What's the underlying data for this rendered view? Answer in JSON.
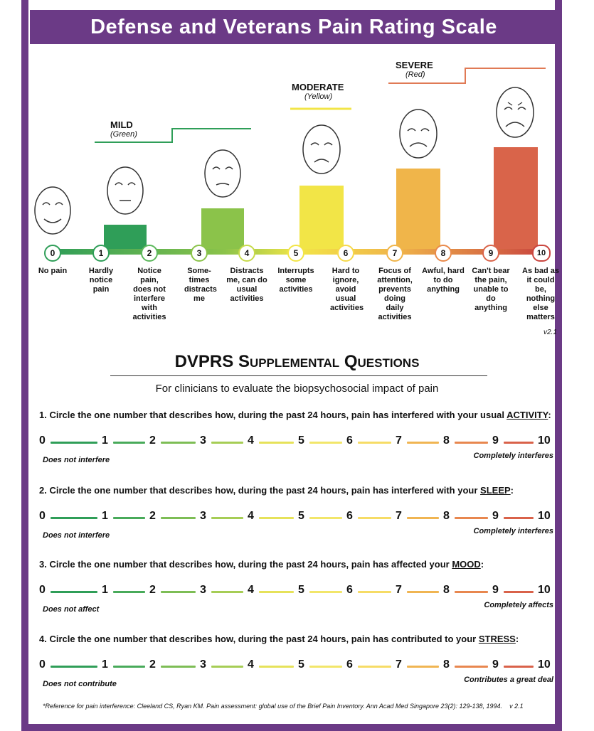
{
  "title": "Defense and Veterans Pain Rating Scale",
  "categories": [
    {
      "name": "MILD",
      "color_label": "(Green)"
    },
    {
      "name": "MODERATE",
      "color_label": "(Yellow)"
    },
    {
      "name": "SEVERE",
      "color_label": "(Red)"
    }
  ],
  "ratings": [
    {
      "num": "0",
      "desc": "No pain",
      "color": "#2f9e58"
    },
    {
      "num": "1",
      "desc": "Hardly notice pain",
      "color": "#2f9e58"
    },
    {
      "num": "2",
      "desc": "Notice pain, does not interfere with activities",
      "color": "#5cb85c"
    },
    {
      "num": "3",
      "desc": "Some-times distracts me",
      "color": "#8bc34a"
    },
    {
      "num": "4",
      "desc": "Distracts me, can do usual activities",
      "color": "#c7da4b"
    },
    {
      "num": "5",
      "desc": "Interrupts some activities",
      "color": "#f2e547"
    },
    {
      "num": "6",
      "desc": "Hard to ignore, avoid usual activities",
      "color": "#f6d94a"
    },
    {
      "num": "7",
      "desc": "Focus of attention, prevents doing daily activities",
      "color": "#f0b54a"
    },
    {
      "num": "8",
      "desc": "Awful, hard to do anything",
      "color": "#e98a4b"
    },
    {
      "num": "9",
      "desc": "Can't bear the pain, unable to do anything",
      "color": "#d9644a"
    },
    {
      "num": "10",
      "desc": "As bad as it could be, nothing else matters",
      "color": "#c9453f"
    }
  ],
  "version": "v2.1",
  "supplemental": {
    "title_main": "DVPRS",
    "title_rest": "Supplemental Questions",
    "subtitle": "For clinicians to evaluate the biopsychosocial impact of pain",
    "questions": [
      {
        "prefix": "1. Circle the one number that describes how, during the past 24 hours, pain has interfered with your usual ",
        "keyword": "ACTIVITY",
        "suffix": ":",
        "low": "Does not interfere",
        "high": "Completely interferes"
      },
      {
        "prefix": "2. Circle the one number that describes how, during the past 24 hours, pain has interfered with your ",
        "keyword": "SLEEP",
        "suffix": ":",
        "low": "Does not interfere",
        "high": "Completely interferes"
      },
      {
        "prefix": "3. Circle the one number that describes how, during the past 24 hours, pain has affected your ",
        "keyword": "MOOD",
        "suffix": ":",
        "low": "Does not affect",
        "high": "Completely affects"
      },
      {
        "prefix": "4. Circle the one number that describes how, during the past 24 hours, pain has contributed to your ",
        "keyword": "STRESS",
        "suffix": ":",
        "low": "Does not contribute",
        "high": "Contributes a great deal"
      }
    ],
    "scale_numbers": [
      "0",
      "1",
      "2",
      "3",
      "4",
      "5",
      "6",
      "7",
      "8",
      "9",
      "10"
    ],
    "segment_colors": [
      "#2f9e58",
      "#48aa5a",
      "#7dbd55",
      "#a6cd55",
      "#e6e25a",
      "#f2e66a",
      "#f6dc66",
      "#f0b552",
      "#e8874f",
      "#d9624a"
    ]
  },
  "reference": "*Reference for pain interference: Cleeland CS, Ryan KM. Pain assessment: global use of the Brief Pain Inventory. Ann Acad Med Singapore 23(2): 129-138, 1994.",
  "reference_version": "v 2.1"
}
